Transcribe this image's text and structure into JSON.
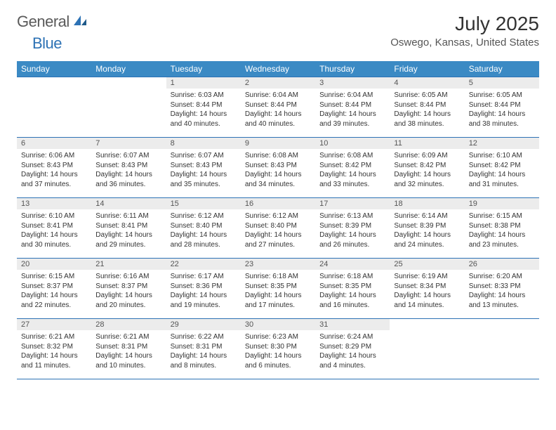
{
  "logo": {
    "general": "General",
    "blue": "Blue"
  },
  "header": {
    "title": "July 2025",
    "location": "Oswego, Kansas, United States"
  },
  "colors": {
    "header_bg": "#3b8ac4",
    "header_text": "#ffffff",
    "border": "#2d72b5",
    "daynum_bg": "#ececec",
    "text": "#333333",
    "logo_gray": "#5a5a5a",
    "logo_blue": "#2d72b5"
  },
  "weekdays": [
    "Sunday",
    "Monday",
    "Tuesday",
    "Wednesday",
    "Thursday",
    "Friday",
    "Saturday"
  ],
  "days": [
    {
      "n": "1",
      "sunrise": "6:03 AM",
      "sunset": "8:44 PM",
      "daylight": "14 hours and 40 minutes."
    },
    {
      "n": "2",
      "sunrise": "6:04 AM",
      "sunset": "8:44 PM",
      "daylight": "14 hours and 40 minutes."
    },
    {
      "n": "3",
      "sunrise": "6:04 AM",
      "sunset": "8:44 PM",
      "daylight": "14 hours and 39 minutes."
    },
    {
      "n": "4",
      "sunrise": "6:05 AM",
      "sunset": "8:44 PM",
      "daylight": "14 hours and 38 minutes."
    },
    {
      "n": "5",
      "sunrise": "6:05 AM",
      "sunset": "8:44 PM",
      "daylight": "14 hours and 38 minutes."
    },
    {
      "n": "6",
      "sunrise": "6:06 AM",
      "sunset": "8:43 PM",
      "daylight": "14 hours and 37 minutes."
    },
    {
      "n": "7",
      "sunrise": "6:07 AM",
      "sunset": "8:43 PM",
      "daylight": "14 hours and 36 minutes."
    },
    {
      "n": "8",
      "sunrise": "6:07 AM",
      "sunset": "8:43 PM",
      "daylight": "14 hours and 35 minutes."
    },
    {
      "n": "9",
      "sunrise": "6:08 AM",
      "sunset": "8:43 PM",
      "daylight": "14 hours and 34 minutes."
    },
    {
      "n": "10",
      "sunrise": "6:08 AM",
      "sunset": "8:42 PM",
      "daylight": "14 hours and 33 minutes."
    },
    {
      "n": "11",
      "sunrise": "6:09 AM",
      "sunset": "8:42 PM",
      "daylight": "14 hours and 32 minutes."
    },
    {
      "n": "12",
      "sunrise": "6:10 AM",
      "sunset": "8:42 PM",
      "daylight": "14 hours and 31 minutes."
    },
    {
      "n": "13",
      "sunrise": "6:10 AM",
      "sunset": "8:41 PM",
      "daylight": "14 hours and 30 minutes."
    },
    {
      "n": "14",
      "sunrise": "6:11 AM",
      "sunset": "8:41 PM",
      "daylight": "14 hours and 29 minutes."
    },
    {
      "n": "15",
      "sunrise": "6:12 AM",
      "sunset": "8:40 PM",
      "daylight": "14 hours and 28 minutes."
    },
    {
      "n": "16",
      "sunrise": "6:12 AM",
      "sunset": "8:40 PM",
      "daylight": "14 hours and 27 minutes."
    },
    {
      "n": "17",
      "sunrise": "6:13 AM",
      "sunset": "8:39 PM",
      "daylight": "14 hours and 26 minutes."
    },
    {
      "n": "18",
      "sunrise": "6:14 AM",
      "sunset": "8:39 PM",
      "daylight": "14 hours and 24 minutes."
    },
    {
      "n": "19",
      "sunrise": "6:15 AM",
      "sunset": "8:38 PM",
      "daylight": "14 hours and 23 minutes."
    },
    {
      "n": "20",
      "sunrise": "6:15 AM",
      "sunset": "8:37 PM",
      "daylight": "14 hours and 22 minutes."
    },
    {
      "n": "21",
      "sunrise": "6:16 AM",
      "sunset": "8:37 PM",
      "daylight": "14 hours and 20 minutes."
    },
    {
      "n": "22",
      "sunrise": "6:17 AM",
      "sunset": "8:36 PM",
      "daylight": "14 hours and 19 minutes."
    },
    {
      "n": "23",
      "sunrise": "6:18 AM",
      "sunset": "8:35 PM",
      "daylight": "14 hours and 17 minutes."
    },
    {
      "n": "24",
      "sunrise": "6:18 AM",
      "sunset": "8:35 PM",
      "daylight": "14 hours and 16 minutes."
    },
    {
      "n": "25",
      "sunrise": "6:19 AM",
      "sunset": "8:34 PM",
      "daylight": "14 hours and 14 minutes."
    },
    {
      "n": "26",
      "sunrise": "6:20 AM",
      "sunset": "8:33 PM",
      "daylight": "14 hours and 13 minutes."
    },
    {
      "n": "27",
      "sunrise": "6:21 AM",
      "sunset": "8:32 PM",
      "daylight": "14 hours and 11 minutes."
    },
    {
      "n": "28",
      "sunrise": "6:21 AM",
      "sunset": "8:31 PM",
      "daylight": "14 hours and 10 minutes."
    },
    {
      "n": "29",
      "sunrise": "6:22 AM",
      "sunset": "8:31 PM",
      "daylight": "14 hours and 8 minutes."
    },
    {
      "n": "30",
      "sunrise": "6:23 AM",
      "sunset": "8:30 PM",
      "daylight": "14 hours and 6 minutes."
    },
    {
      "n": "31",
      "sunrise": "6:24 AM",
      "sunset": "8:29 PM",
      "daylight": "14 hours and 4 minutes."
    }
  ],
  "labels": {
    "sunrise": "Sunrise:",
    "sunset": "Sunset:",
    "daylight": "Daylight:"
  },
  "layout": {
    "first_weekday_index": 2,
    "rows": 5,
    "cols": 7
  }
}
